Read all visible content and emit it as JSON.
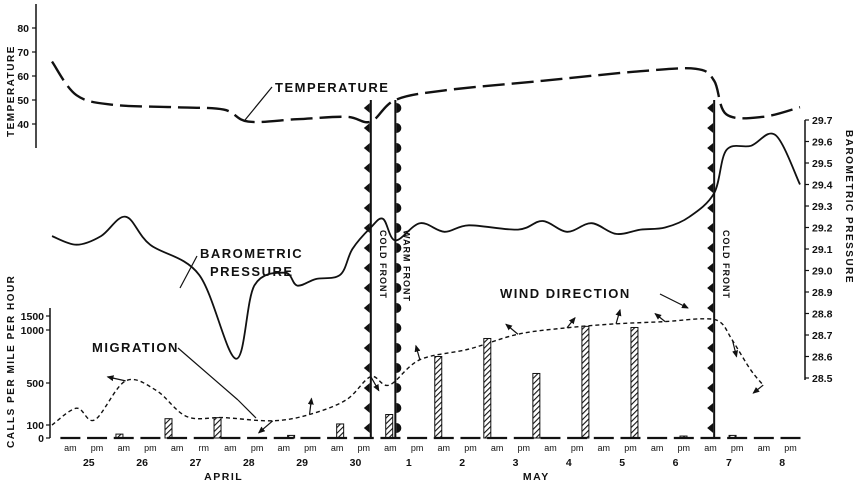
{
  "chart_data": {
    "type": "line",
    "panels": {
      "temperature": {
        "ylabel": "TEMPERATURE",
        "yticks": [
          40,
          50,
          60,
          70,
          80
        ],
        "ylim": [
          30,
          90
        ],
        "series_label": "TEMPERATURE",
        "points": [
          [
            0,
            66
          ],
          [
            8,
            52
          ],
          [
            20,
            48
          ],
          [
            40,
            47
          ],
          [
            56,
            46
          ],
          [
            64,
            41
          ],
          [
            80,
            42
          ],
          [
            96,
            43
          ],
          [
            104,
            41
          ],
          [
            112,
            50
          ],
          [
            128,
            54
          ],
          [
            160,
            58
          ],
          [
            192,
            62
          ],
          [
            210,
            63
          ],
          [
            216,
            58
          ],
          [
            220,
            44
          ],
          [
            232,
            43
          ],
          [
            244,
            47
          ]
        ]
      },
      "pressure": {
        "ylabel": "BAROMETRIC PRESSURE",
        "yticks": [
          28.5,
          28.6,
          28.7,
          28.8,
          28.9,
          29.0,
          29.1,
          29.2,
          29.3,
          29.4,
          29.5,
          29.6,
          29.7
        ],
        "ylim": [
          28.45,
          29.75
        ],
        "series_label": "BAROMETRIC PRESSURE",
        "points": [
          [
            0,
            29.16
          ],
          [
            8,
            29.12
          ],
          [
            16,
            29.16
          ],
          [
            24,
            29.25
          ],
          [
            32,
            29.12
          ],
          [
            48,
            28.98
          ],
          [
            60,
            28.59
          ],
          [
            66,
            28.93
          ],
          [
            76,
            28.99
          ],
          [
            80,
            28.93
          ],
          [
            86,
            28.96
          ],
          [
            94,
            28.98
          ],
          [
            98,
            29.1
          ],
          [
            104,
            29.2
          ],
          [
            108,
            29.24
          ],
          [
            112,
            29.14
          ],
          [
            120,
            29.22
          ],
          [
            128,
            29.18
          ],
          [
            136,
            29.21
          ],
          [
            152,
            29.19
          ],
          [
            160,
            29.23
          ],
          [
            168,
            29.18
          ],
          [
            176,
            29.22
          ],
          [
            184,
            29.17
          ],
          [
            192,
            29.19
          ],
          [
            200,
            29.2
          ],
          [
            208,
            29.25
          ],
          [
            216,
            29.36
          ],
          [
            220,
            29.56
          ],
          [
            228,
            29.58
          ],
          [
            236,
            29.63
          ],
          [
            244,
            29.4
          ]
        ]
      },
      "migration": {
        "ylabel": "CALLS PER MILE PER HOUR",
        "yticks": [
          0,
          100,
          500,
          1000,
          1500
        ],
        "ylim": [
          0,
          1600
        ],
        "series_label": "MIGRATION",
        "bars": [
          [
            22,
            30
          ],
          [
            38,
            160
          ],
          [
            54,
            170
          ],
          [
            78,
            20
          ],
          [
            94,
            110
          ],
          [
            110,
            200
          ],
          [
            126,
            750
          ],
          [
            142,
            920
          ],
          [
            158,
            590
          ],
          [
            174,
            1130
          ],
          [
            190,
            1090
          ],
          [
            206,
            15
          ],
          [
            222,
            20
          ]
        ]
      },
      "wind": {
        "series_label": "WIND DIRECTION"
      }
    },
    "fronts": [
      {
        "label": "COLD FRONT",
        "x": 104
      },
      {
        "label": "WARM FRONT",
        "x": 112
      },
      {
        "label": "COLD FRONT",
        "x": 216
      }
    ],
    "x_axis": {
      "unit": "hours from Apr 25 00:00",
      "ampm": [
        "am",
        "pm",
        "am",
        "pm",
        "am",
        "rm",
        "am",
        "pm",
        "am",
        "pm",
        "am",
        "pm",
        "am",
        "pm",
        "am",
        "pm",
        "am",
        "pm",
        "am",
        "pm",
        "am",
        "pm",
        "am",
        "pm",
        "am",
        "pm",
        "am",
        "pm"
      ],
      "dates": [
        "25",
        "26",
        "27",
        "28",
        "29",
        "30",
        "1",
        "2",
        "3",
        "4",
        "5",
        "6",
        "7",
        "8"
      ],
      "months": [
        "APRIL",
        "MAY"
      ]
    }
  }
}
